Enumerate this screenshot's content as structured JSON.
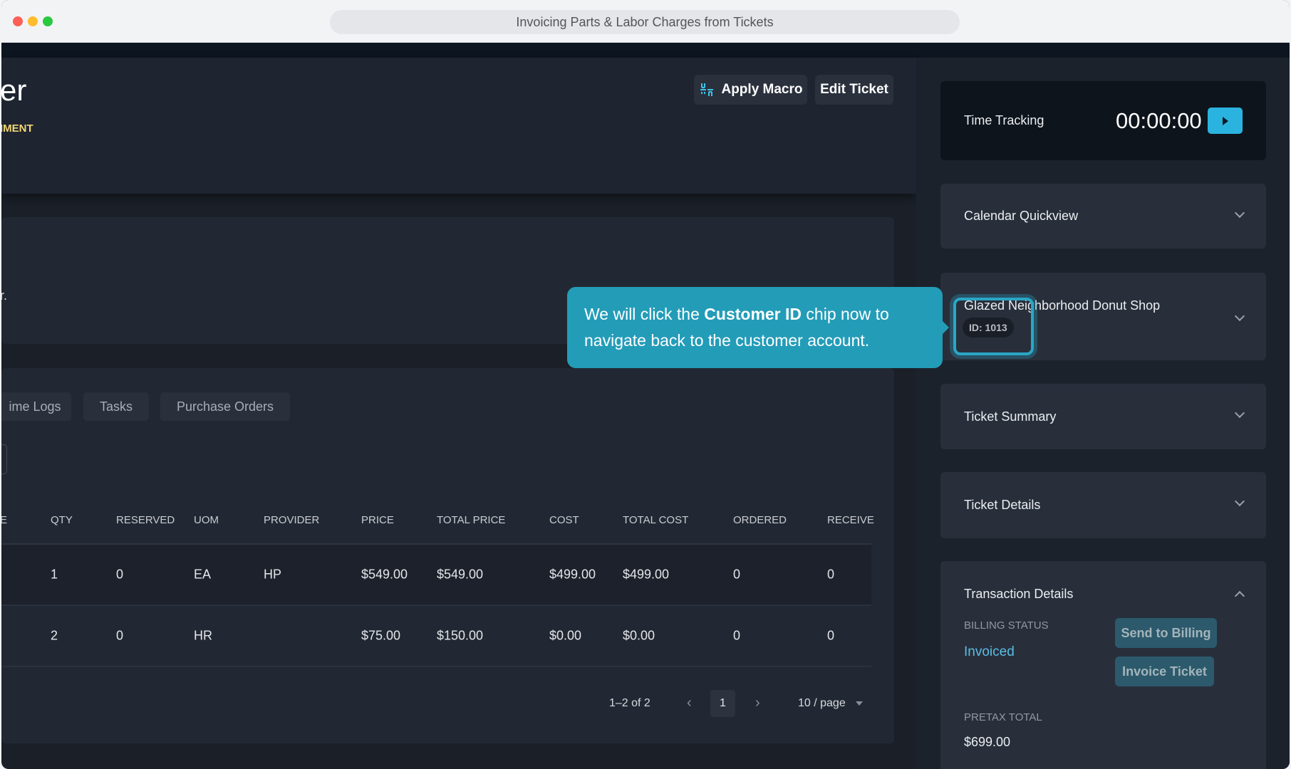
{
  "window": {
    "title": "Invoicing Parts & Labor Charges from Tickets"
  },
  "header": {
    "title_fragment": "er",
    "subtitle_fragment": "IMENT",
    "apply_macro": "Apply Macro",
    "edit_ticket": "Edit Ticket"
  },
  "info_card": {
    "text_fragment": "r."
  },
  "tabs": [
    {
      "label": "ime Logs"
    },
    {
      "label": "Tasks"
    },
    {
      "label": "Purchase Orders"
    }
  ],
  "table": {
    "columns": [
      "E",
      "QTY",
      "RESERVED",
      "UOM",
      "PROVIDER",
      "PRICE",
      "TOTAL PRICE",
      "COST",
      "TOTAL COST",
      "ORDERED",
      "RECEIVE"
    ],
    "rows": [
      [
        "",
        "1",
        "0",
        "EA",
        "HP",
        "$549.00",
        "$549.00",
        "$499.00",
        "$499.00",
        "0",
        "0"
      ],
      [
        "",
        "2",
        "0",
        "HR",
        "",
        "$75.00",
        "$150.00",
        "$0.00",
        "$0.00",
        "0",
        "0"
      ]
    ]
  },
  "pagination": {
    "range": "1–2 of 2",
    "current_page": "1",
    "page_size": "10 / page"
  },
  "sidebar": {
    "time_tracking": {
      "label": "Time Tracking",
      "time": "00:00:00"
    },
    "calendar": {
      "title": "Calendar Quickview"
    },
    "customer": {
      "name": "Glazed Neighborhood Donut Shop",
      "id_chip": "ID: 1013"
    },
    "ticket_summary": {
      "title": "Ticket Summary"
    },
    "ticket_details": {
      "title": "Ticket Details"
    },
    "transaction": {
      "title": "Transaction Details",
      "billing_status_label": "BILLING STATUS",
      "billing_status": "Invoiced",
      "send_to_billing": "Send to Billing",
      "invoice_ticket": "Invoice Ticket",
      "pretax_label": "PRETAX TOTAL",
      "pretax_total": "$699.00"
    }
  },
  "tooltip": {
    "before": "We will click the ",
    "bold": "Customer ID",
    "after": " chip now to navigate back to the customer account."
  },
  "colors": {
    "accent": "#2bb3e0",
    "tooltip": "#239cb8",
    "warning": "#f2d774",
    "invoiced": "#5bbde4"
  }
}
